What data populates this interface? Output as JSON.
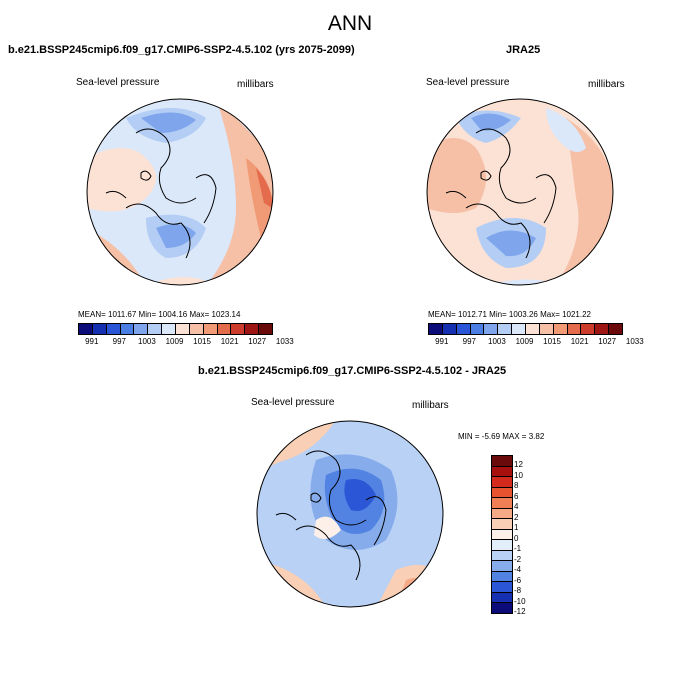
{
  "main_title": "ANN",
  "panels": [
    {
      "title": "b.e21.BSSP245cmip6.f09_g17.CMIP6-SSP2-4.5.102 (yrs 2075-2099)",
      "left_label": "Sea-level pressure",
      "right_label": "millibars",
      "stats": "MEAN= 1011.67  Min= 1004.16  Max= 1023.14"
    },
    {
      "title": "JRA25",
      "left_label": "Sea-level pressure",
      "right_label": "millibars",
      "stats": "MEAN= 1012.71  Min= 1003.26  Max= 1021.22"
    },
    {
      "title": "b.e21.BSSP245cmip6.f09_g17.CMIP6-SSP2-4.5.102 - JRA25",
      "left_label": "Sea-level pressure",
      "right_label": "millibars",
      "stats": "MIN =  -5.69 MAX =   3.82"
    }
  ],
  "colorbar_abs": {
    "colors": [
      "#0b0b7a",
      "#1530b0",
      "#2a55d6",
      "#4b7ee3",
      "#7fa6ec",
      "#b3cdf4",
      "#dbe8fa",
      "#fbe2d5",
      "#f6c0a6",
      "#f09a76",
      "#e46b4b",
      "#cc3b2b",
      "#9e1614",
      "#6b0a0a"
    ],
    "labels": [
      "991",
      "997",
      "1003",
      "1009",
      "1015",
      "1021",
      "1027",
      "1033"
    ]
  },
  "colorbar_diff": {
    "colors": [
      "#6b0a0a",
      "#a81010",
      "#d42a1e",
      "#e8532f",
      "#f07f55",
      "#f5a987",
      "#f9cfb6",
      "#fdf0e8",
      "#e3eefb",
      "#b8d1f5",
      "#86acec",
      "#5283e2",
      "#2b57d6",
      "#1530b0",
      "#0b0b7a"
    ],
    "labels": [
      "12",
      "10",
      "8",
      "6",
      "4",
      "2",
      "1",
      "0",
      "-1",
      "-2",
      "-4",
      "-6",
      "-8",
      "-10",
      "-12"
    ]
  }
}
